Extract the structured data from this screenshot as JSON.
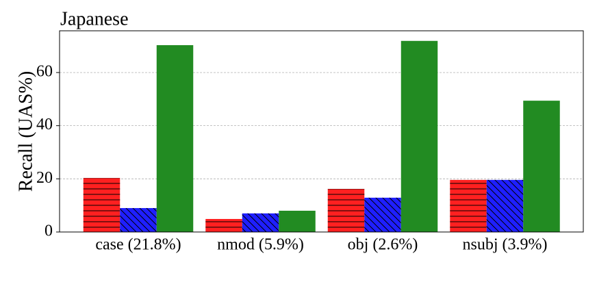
{
  "chart_data": {
    "type": "bar",
    "title": "Japanese",
    "y_label": "Recall (UAS%)",
    "categories": [
      "case (21.8%)",
      "nmod (5.9%)",
      "obj (2.6%)",
      "nsubj (3.9%)"
    ],
    "series": [
      {
        "color": "#ff2020",
        "hatch": "-",
        "values": [
          20.3,
          4.9,
          16.2,
          19.6
        ]
      },
      {
        "color": "#1f1fff",
        "hatch": "\\",
        "values": [
          9.0,
          7.0,
          12.9,
          19.6
        ]
      },
      {
        "color": "#228b22",
        "values": [
          70.3,
          8.0,
          71.9,
          49.4
        ]
      }
    ],
    "ylim": [
      0,
      75.7
    ],
    "yticks": [
      0,
      20,
      40,
      60
    ],
    "grid": true
  }
}
